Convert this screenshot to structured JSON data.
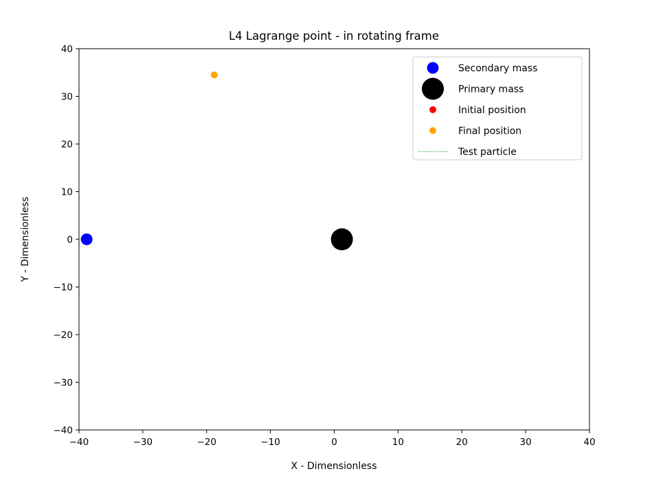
{
  "chart_data": {
    "type": "scatter",
    "title": "L4 Lagrange point - in rotating frame",
    "xlabel": "X - Dimensionless",
    "ylabel": "Y - Dimensionless",
    "xlim": [
      -40,
      40
    ],
    "ylim": [
      -40,
      40
    ],
    "xticks": [
      -40,
      -30,
      -20,
      -10,
      0,
      10,
      20,
      30,
      40
    ],
    "yticks": [
      -40,
      -30,
      -20,
      -10,
      0,
      10,
      20,
      30,
      40
    ],
    "grid": false,
    "legend_position": "top-right",
    "series": [
      {
        "name": "Secondary mass",
        "kind": "marker",
        "color": "#0000ff",
        "points": [
          {
            "x": -38.8,
            "y": 0
          }
        ]
      },
      {
        "name": "Primary mass",
        "kind": "marker",
        "color": "#000000",
        "points": [
          {
            "x": 1.2,
            "y": 0
          }
        ]
      },
      {
        "name": "Initial position",
        "kind": "marker",
        "color": "#ff0000",
        "points": []
      },
      {
        "name": "Final position",
        "kind": "marker",
        "color": "#ffa500",
        "points": [
          {
            "x": -18.8,
            "y": 34.5
          }
        ]
      },
      {
        "name": "Test particle",
        "kind": "line",
        "style": "dashed",
        "color": "#008000",
        "points": []
      }
    ]
  }
}
